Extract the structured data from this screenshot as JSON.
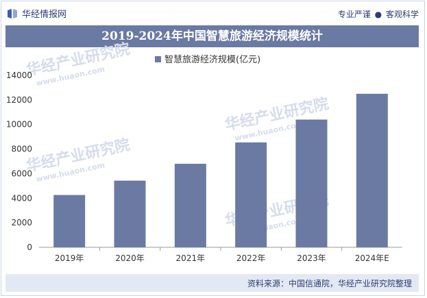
{
  "header": {
    "logo_text": "华经情报网",
    "tagline_left": "专业严谨",
    "tagline_sep": "●",
    "tagline_right": "客观科学"
  },
  "footer": {
    "source": "资料来源：中国信通院，华经产业研究院整理"
  },
  "watermark": {
    "text": "华经产业研究院",
    "url": "www.huaon.com"
  },
  "colors": {
    "bar": "#6a7aa3",
    "title_bg": "#6a7aa3",
    "footer_bg": "#e3e9f4"
  },
  "chart_data": {
    "type": "bar",
    "title": "2019-2024年中国智慧旅游经济规模统计",
    "categories": [
      "2019年",
      "2020年",
      "2021年",
      "2022年",
      "2023年",
      "2024年E"
    ],
    "series": [
      {
        "name": "智慧旅游经济规模(亿元)",
        "values": [
          4260,
          5430,
          6800,
          8540,
          10400,
          12500
        ]
      }
    ],
    "ylim": [
      0,
      14000
    ],
    "yticks": [
      0,
      2000,
      4000,
      6000,
      8000,
      10000,
      12000,
      14000
    ],
    "legend_position": "top-center",
    "grid": false
  }
}
